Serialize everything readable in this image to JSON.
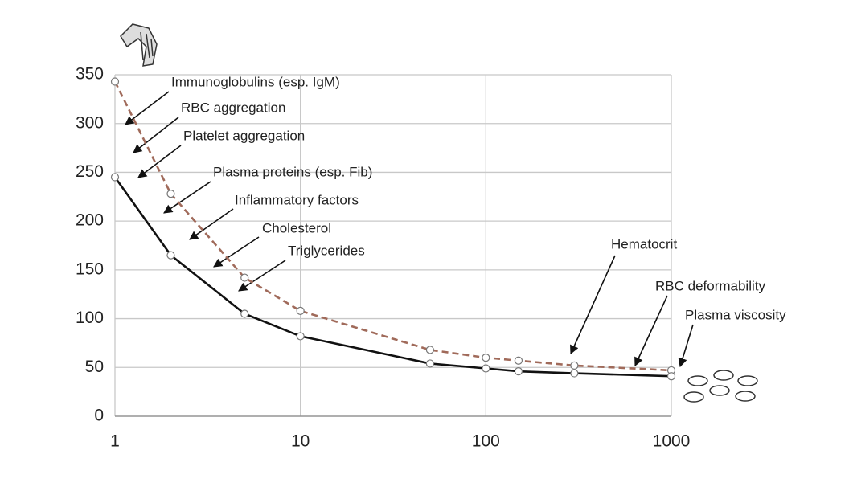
{
  "chart_data": {
    "type": "line",
    "x": [
      1,
      2,
      5,
      10,
      50,
      100,
      150,
      300,
      1000
    ],
    "series": [
      {
        "color": "#a06a5a",
        "style": "dashed",
        "values": [
          343,
          228,
          142,
          108,
          68,
          60,
          57,
          52,
          47
        ]
      },
      {
        "color": "#111111",
        "style": "solid",
        "values": [
          245,
          165,
          105,
          82,
          54,
          49,
          46,
          44,
          41
        ]
      }
    ],
    "xlim": [
      1,
      1000
    ],
    "xlog": true,
    "xticks": [
      1,
      10,
      100,
      1000
    ],
    "ylim": [
      0,
      350
    ],
    "yticks": [
      0,
      50,
      100,
      150,
      200,
      250,
      300,
      350
    ],
    "grid": true,
    "annotations": [
      "Immunoglobulins (esp. IgM)",
      "RBC aggregation",
      "Platelet aggregation",
      "Plasma proteins (esp. Fib)",
      "Inflammatory factors",
      "Cholesterol",
      "Triglycerides",
      "Hematocrit",
      "RBC deformability",
      "Plasma viscosity"
    ]
  }
}
